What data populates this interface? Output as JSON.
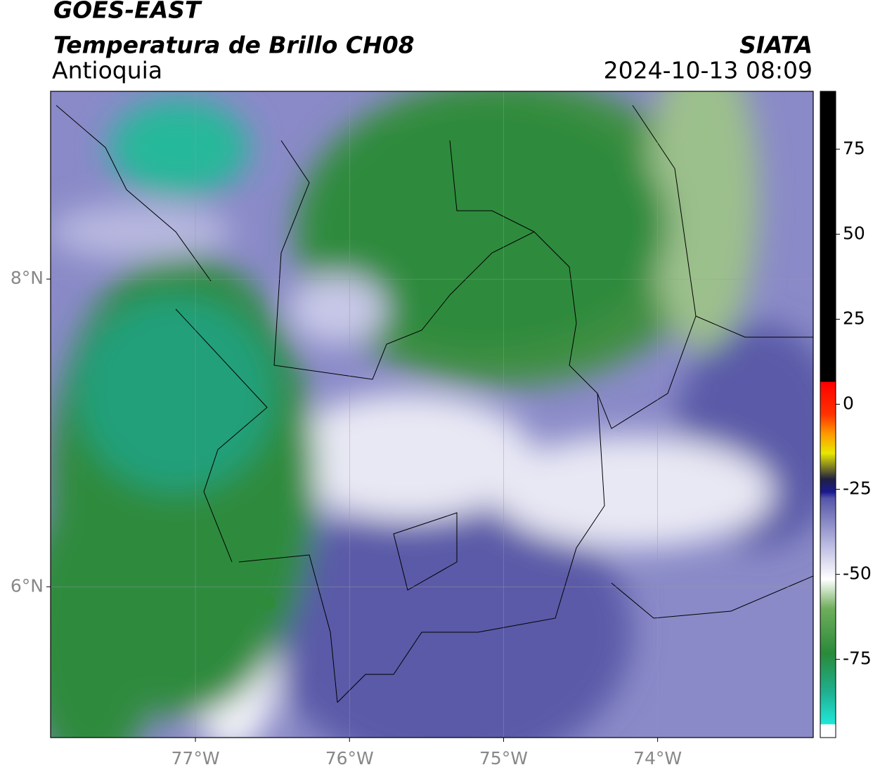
{
  "header": {
    "title": "GOES-EAST",
    "subtitle": "Temperatura de Brillo CH08",
    "region": "Antioquia",
    "source": "SIATA",
    "timestamp": "2024-10-13 08:09"
  },
  "map": {
    "xlim": [
      -77.94,
      -72.99
    ],
    "ylim": [
      5.02,
      9.22
    ],
    "xticks": [
      {
        "value": -77,
        "label": "77°W"
      },
      {
        "value": -76,
        "label": "76°W"
      },
      {
        "value": -75,
        "label": "75°W"
      },
      {
        "value": -74,
        "label": "74°W"
      }
    ],
    "yticks": [
      {
        "value": 8,
        "label": "8°N"
      },
      {
        "value": 6,
        "label": "6°N"
      }
    ],
    "grid": true
  },
  "colorbar": {
    "lim": [
      -98,
      92
    ],
    "ticks": [
      75,
      50,
      25,
      0,
      -25,
      -50,
      -75
    ]
  }
}
